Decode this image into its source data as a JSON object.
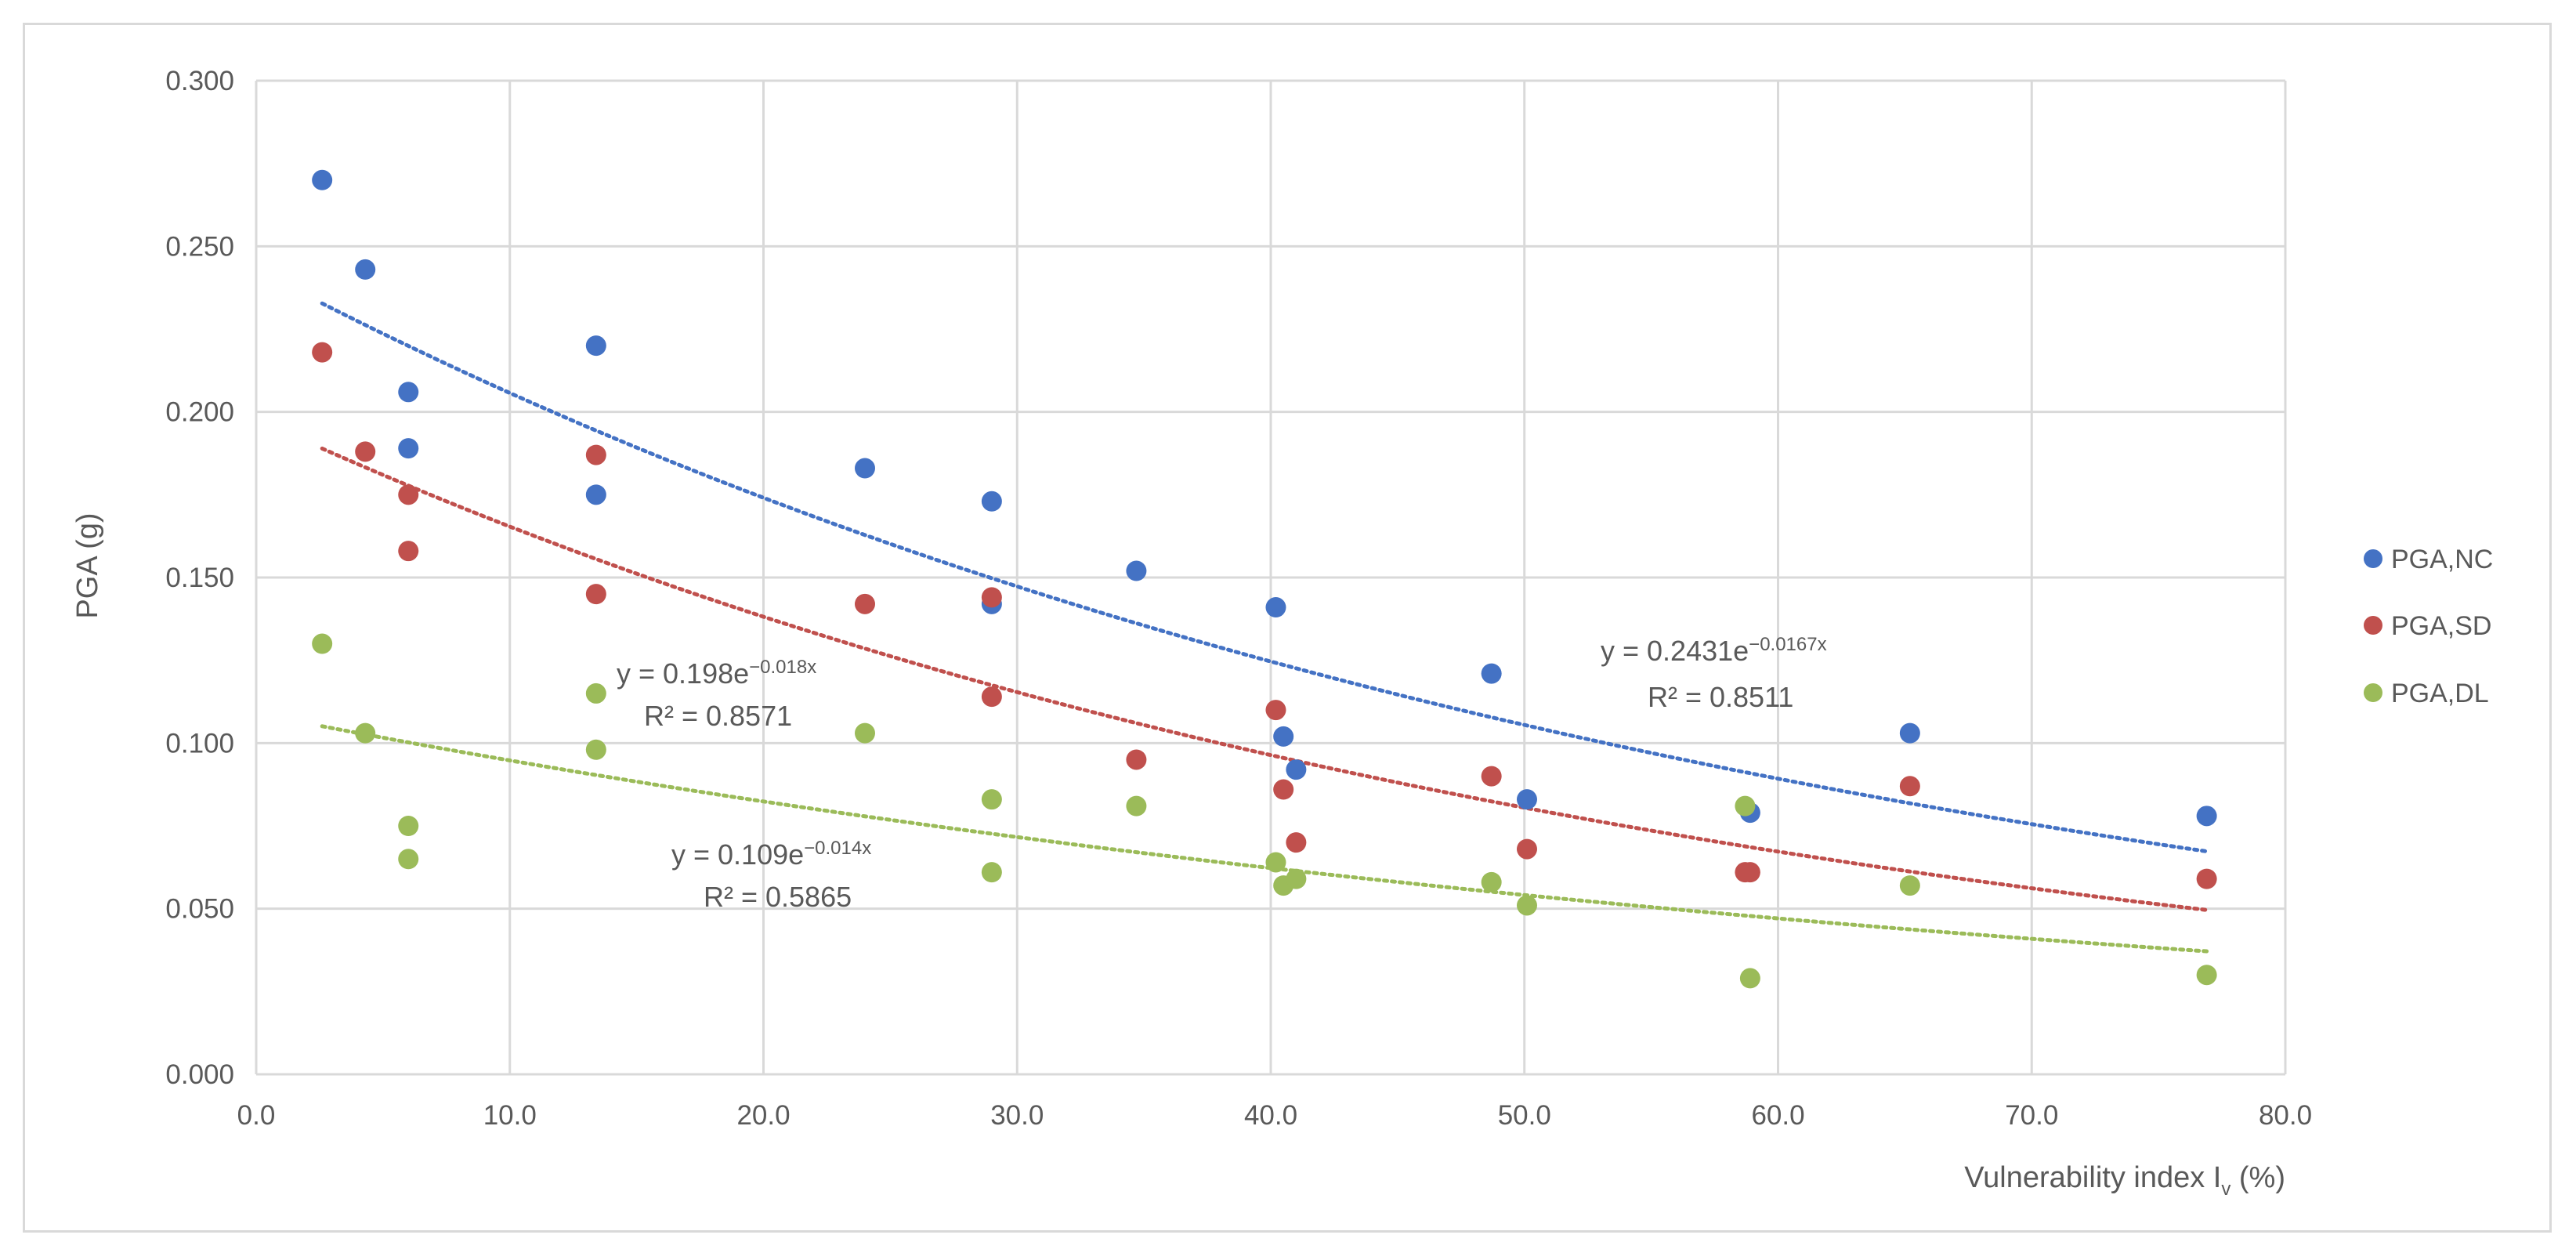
{
  "chart_data": {
    "type": "scatter",
    "title": "",
    "xlabel": "Vulnerability index I",
    "xlabel_sub": "v",
    "xlabel_suffix": " (%)",
    "ylabel": "PGA (g)",
    "xlim": [
      0,
      80
    ],
    "ylim": [
      0,
      0.3
    ],
    "x_ticks": [
      "0.0",
      "10.0",
      "20.0",
      "30.0",
      "40.0",
      "50.0",
      "60.0",
      "70.0",
      "80.0"
    ],
    "y_ticks": [
      "0.000",
      "0.050",
      "0.100",
      "0.150",
      "0.200",
      "0.250",
      "0.300"
    ],
    "x_tick_values": [
      0,
      10,
      20,
      30,
      40,
      50,
      60,
      70,
      80
    ],
    "y_tick_values": [
      0,
      0.05,
      0.1,
      0.15,
      0.2,
      0.25,
      0.3
    ],
    "grid": true,
    "legend_position": "right",
    "series": [
      {
        "name": "PGA,NC",
        "color": "#4472c4",
        "points": [
          [
            2.6,
            0.27
          ],
          [
            4.3,
            0.243
          ],
          [
            6.0,
            0.206
          ],
          [
            6.0,
            0.189
          ],
          [
            13.4,
            0.22
          ],
          [
            13.4,
            0.175
          ],
          [
            24.0,
            0.183
          ],
          [
            29.0,
            0.173
          ],
          [
            29.0,
            0.142
          ],
          [
            34.7,
            0.152
          ],
          [
            40.2,
            0.141
          ],
          [
            40.5,
            0.102
          ],
          [
            41.0,
            0.092
          ],
          [
            48.7,
            0.121
          ],
          [
            50.1,
            0.083
          ],
          [
            58.9,
            0.079
          ],
          [
            65.2,
            0.103
          ],
          [
            76.9,
            0.078
          ]
        ],
        "trendline": {
          "a": 0.2431,
          "b": -0.0167,
          "x_range": [
            2.6,
            76.9
          ]
        }
      },
      {
        "name": "PGA,SD",
        "color": "#c0504d",
        "points": [
          [
            2.6,
            0.218
          ],
          [
            4.3,
            0.188
          ],
          [
            6.0,
            0.175
          ],
          [
            6.0,
            0.158
          ],
          [
            13.4,
            0.187
          ],
          [
            13.4,
            0.145
          ],
          [
            24.0,
            0.142
          ],
          [
            29.0,
            0.144
          ],
          [
            29.0,
            0.114
          ],
          [
            34.7,
            0.095
          ],
          [
            40.2,
            0.11
          ],
          [
            40.5,
            0.086
          ],
          [
            41.0,
            0.07
          ],
          [
            48.7,
            0.09
          ],
          [
            50.1,
            0.068
          ],
          [
            58.7,
            0.061
          ],
          [
            58.9,
            0.061
          ],
          [
            65.2,
            0.087
          ],
          [
            76.9,
            0.059
          ]
        ],
        "trendline": {
          "a": 0.198,
          "b": -0.018,
          "x_range": [
            2.6,
            76.9
          ]
        }
      },
      {
        "name": "PGA,DL",
        "color": "#9bbb59",
        "points": [
          [
            2.6,
            0.13
          ],
          [
            4.3,
            0.103
          ],
          [
            6.0,
            0.075
          ],
          [
            6.0,
            0.065
          ],
          [
            13.4,
            0.115
          ],
          [
            13.4,
            0.098
          ],
          [
            24.0,
            0.103
          ],
          [
            29.0,
            0.083
          ],
          [
            29.0,
            0.061
          ],
          [
            34.7,
            0.081
          ],
          [
            40.2,
            0.064
          ],
          [
            40.5,
            0.057
          ],
          [
            41.0,
            0.059
          ],
          [
            48.7,
            0.058
          ],
          [
            50.1,
            0.051
          ],
          [
            58.7,
            0.081
          ],
          [
            58.9,
            0.029
          ],
          [
            65.2,
            0.057
          ],
          [
            76.9,
            0.03
          ]
        ],
        "trendline": {
          "a": 0.109,
          "b": -0.014,
          "x_range": [
            2.6,
            76.9
          ]
        }
      }
    ],
    "annotations": [
      {
        "series": "PGA,SD",
        "eq_main": "y = 0.198e",
        "eq_exp": "−0.018x",
        "r2": "R² = 0.8571"
      },
      {
        "series": "PGA,NC",
        "eq_main": "y = 0.2431e",
        "eq_exp": "−0.0167x",
        "r2": "R² = 0.8511"
      },
      {
        "series": "PGA,DL",
        "eq_main": "y = 0.109e",
        "eq_exp": "−0.014x",
        "r2": "R² = 0.5865"
      }
    ]
  }
}
